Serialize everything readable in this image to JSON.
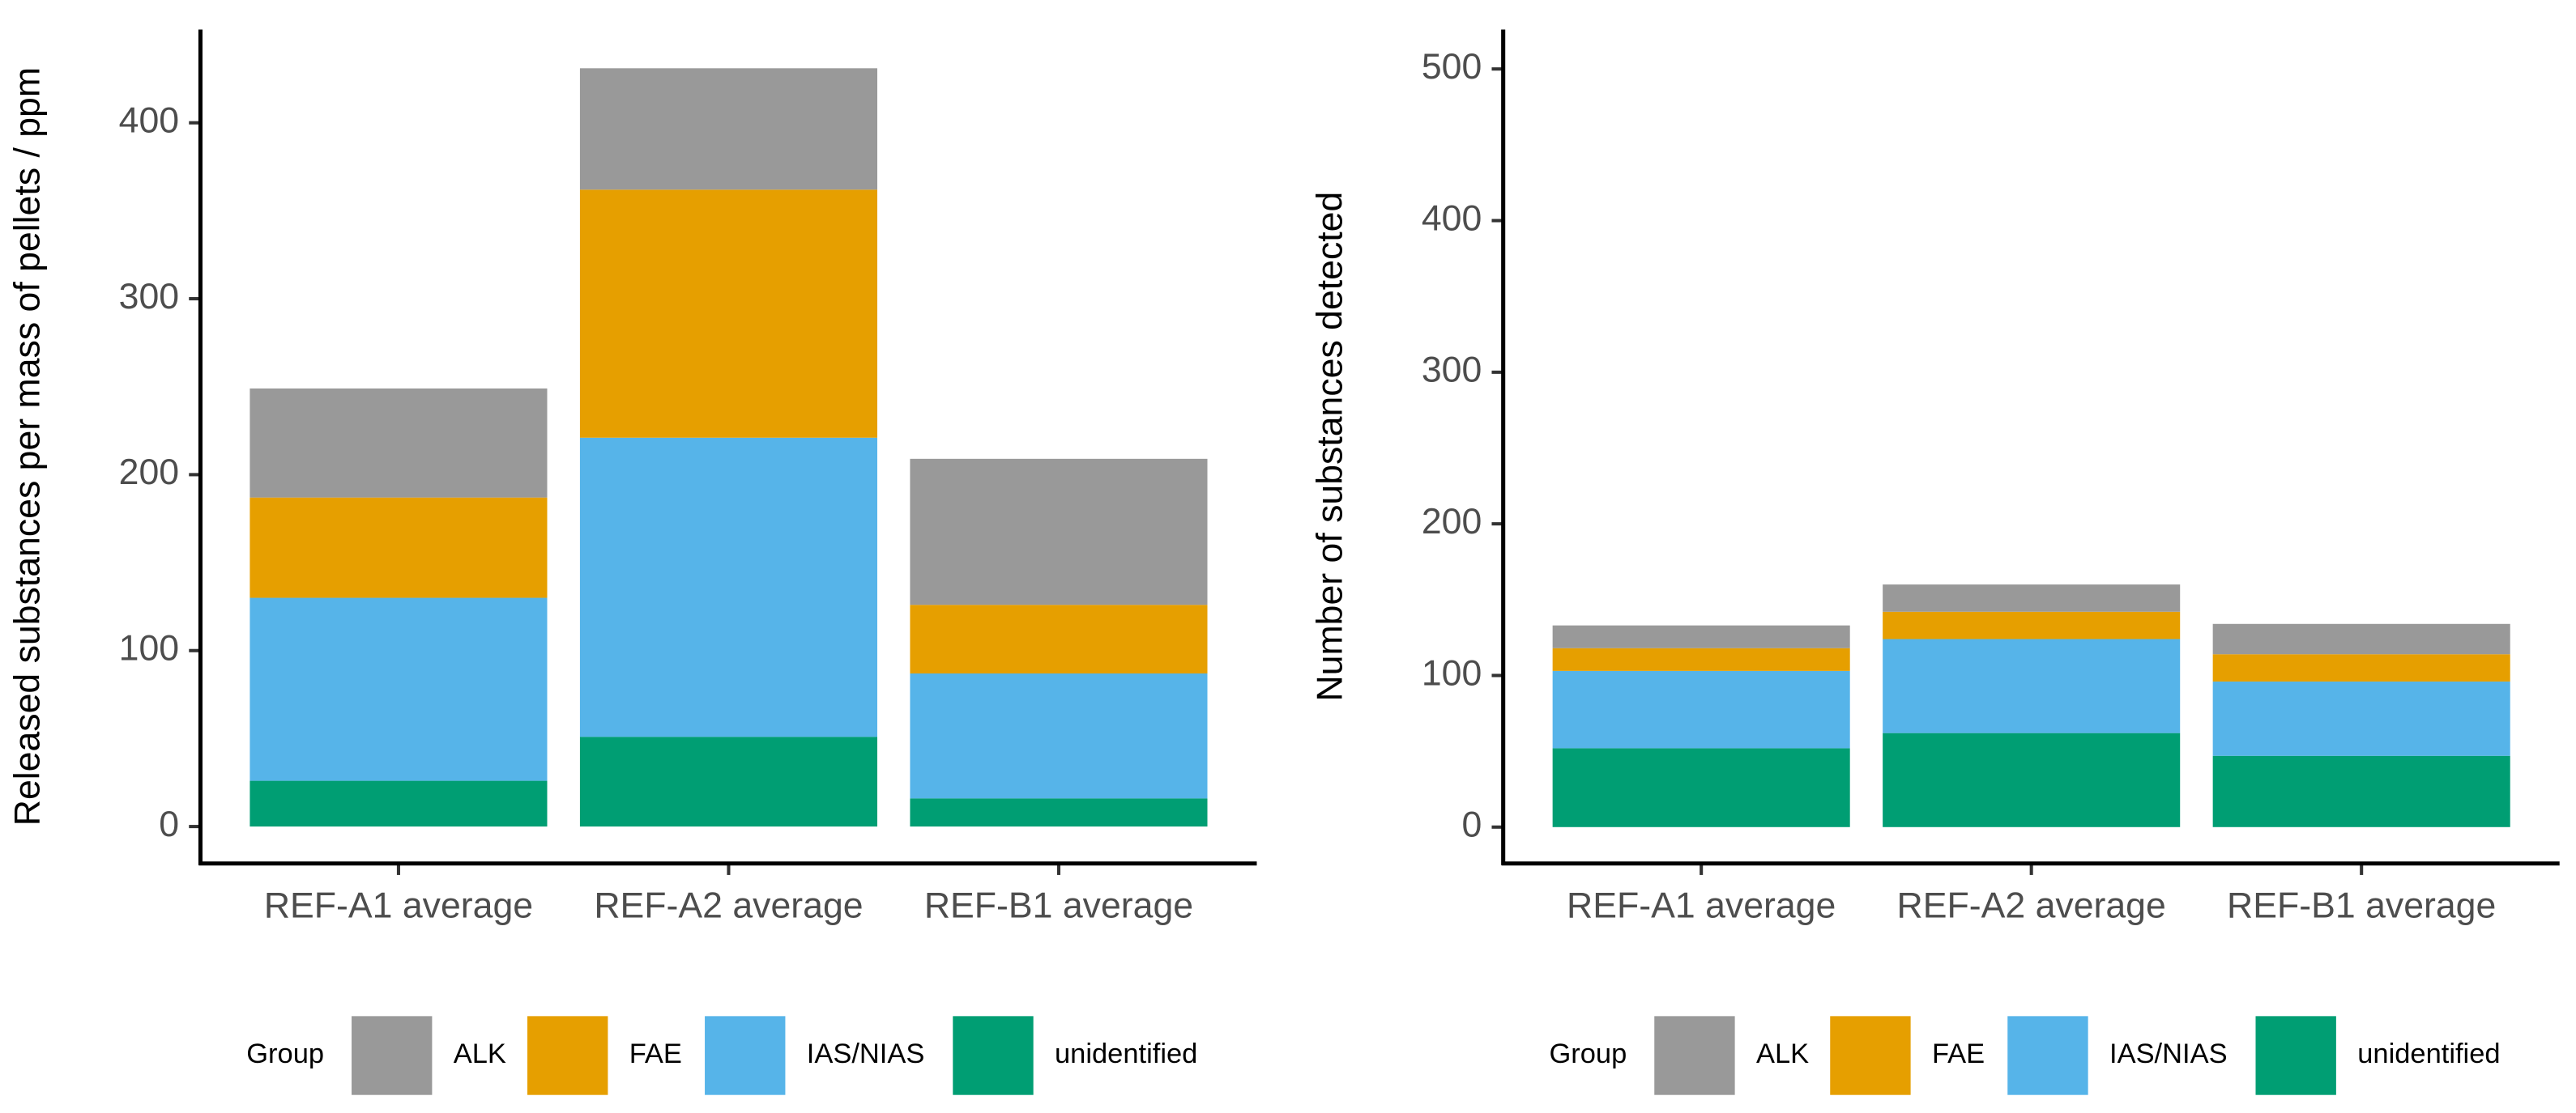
{
  "chart_data": [
    {
      "type": "stacked_bar",
      "y_label": "Released substances per mass of pellets / ppm",
      "categories": [
        "REF-A1 average",
        "REF-A2 average",
        "REF-B1 average"
      ],
      "legend_title": "Group",
      "series": [
        {
          "name": "ALK",
          "color": "#999999",
          "values": [
            62,
            69,
            83
          ]
        },
        {
          "name": "FAE",
          "color": "#E69F00",
          "values": [
            57,
            141,
            39
          ]
        },
        {
          "name": "IAS/NIAS",
          "color": "#56B4E9",
          "values": [
            104,
            170,
            71
          ]
        },
        {
          "name": "unidentified",
          "color": "#009E73",
          "values": [
            26,
            51,
            16
          ]
        }
      ],
      "ylim": [
        -21,
        453
      ],
      "yticks": [
        0,
        100,
        200,
        300,
        400
      ],
      "legend": "bottom"
    },
    {
      "type": "stacked_bar",
      "y_label": "Number of substances detected",
      "categories": [
        "REF-A1 average",
        "REF-A2 average",
        "REF-B1 average"
      ],
      "legend_title": "Group",
      "series": [
        {
          "name": "ALK",
          "color": "#999999",
          "values": [
            15,
            18,
            20
          ]
        },
        {
          "name": "FAE",
          "color": "#E69F00",
          "values": [
            15,
            18,
            18
          ]
        },
        {
          "name": "IAS/NIAS",
          "color": "#56B4E9",
          "values": [
            51,
            62,
            49
          ]
        },
        {
          "name": "unidentified",
          "color": "#009E73",
          "values": [
            52,
            62,
            47
          ]
        }
      ],
      "ylim": [
        -24,
        526
      ],
      "yticks": [
        0,
        100,
        200,
        300,
        400,
        500
      ],
      "legend": "bottom"
    }
  ]
}
